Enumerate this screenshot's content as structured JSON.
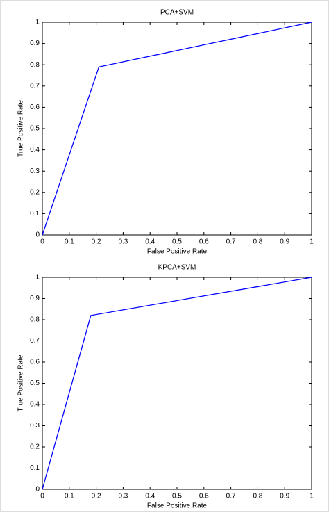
{
  "chart_data": [
    {
      "type": "line",
      "title": "PCA+SVM",
      "x_label": "False Positive Rate",
      "y_label": "True Positive Rate",
      "xlim": [
        0,
        1
      ],
      "ylim": [
        0,
        1
      ],
      "xticks": [
        0,
        0.1,
        0.2,
        0.3,
        0.4,
        0.5,
        0.6,
        0.7,
        0.8,
        0.9,
        1
      ],
      "yticks": [
        0,
        0.1,
        0.2,
        0.3,
        0.4,
        0.5,
        0.6,
        0.7,
        0.8,
        0.9,
        1
      ],
      "series": [
        {
          "color": "#0000ff",
          "x": [
            0,
            0.21,
            1
          ],
          "values": [
            0,
            0.79,
            1
          ]
        }
      ]
    },
    {
      "type": "line",
      "title": "KPCA+SVM",
      "x_label": "False Positive Rate",
      "y_label": "True Positive Rate",
      "xlim": [
        0,
        1
      ],
      "ylim": [
        0,
        1
      ],
      "xticks": [
        0,
        0.1,
        0.2,
        0.3,
        0.4,
        0.5,
        0.6,
        0.7,
        0.8,
        0.9,
        1
      ],
      "yticks": [
        0,
        0.1,
        0.2,
        0.3,
        0.4,
        0.5,
        0.6,
        0.7,
        0.8,
        0.9,
        1
      ],
      "series": [
        {
          "color": "#0000ff",
          "x": [
            0,
            0.18,
            1
          ],
          "values": [
            0,
            0.82,
            1
          ]
        }
      ]
    }
  ]
}
